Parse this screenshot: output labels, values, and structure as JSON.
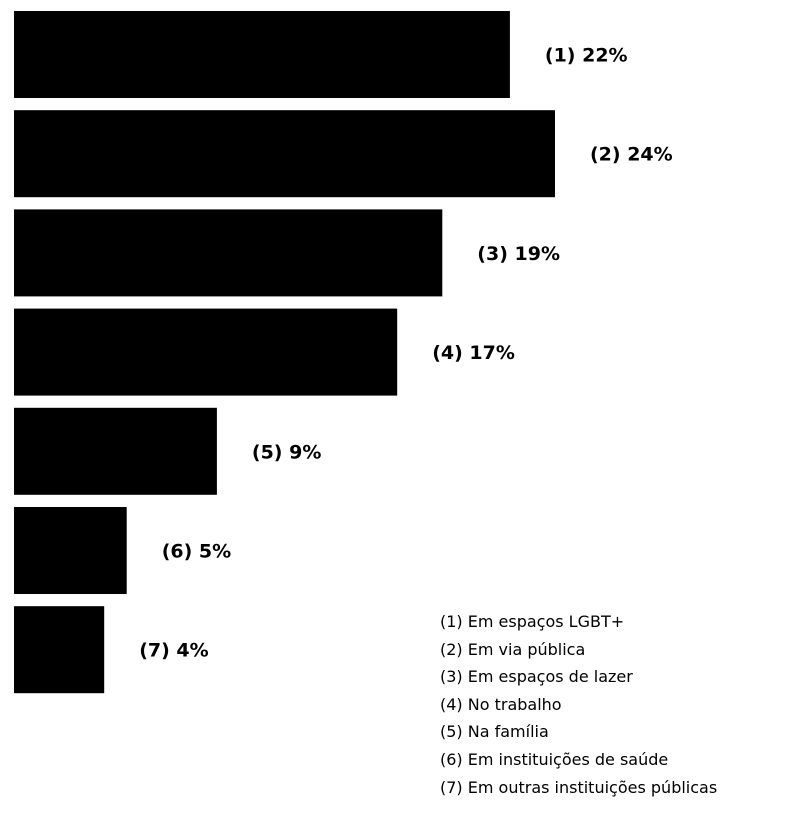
{
  "chart_data": {
    "type": "bar",
    "orientation": "horizontal",
    "categories": [
      "(1)",
      "(2)",
      "(3)",
      "(4)",
      "(5)",
      "(6)",
      "(7)"
    ],
    "values": [
      22,
      24,
      19,
      17,
      9,
      5,
      4
    ],
    "value_labels": [
      "(1) 22%",
      "(2) 24%",
      "(3) 19%",
      "(4) 17%",
      "(5) 9%",
      "(6) 5%",
      "(7) 4%"
    ],
    "legend": [
      "(1) Em espaços LGBT+",
      "(2) Em via pública",
      "(3) Em espaços de lazer",
      "(4) No trabalho",
      "(5) Na família",
      "(6) Em instituições de saúde",
      "(7) Em outras instituições públicas"
    ],
    "legend_position": "bottom-right",
    "bar_color": "#000000",
    "grid": false,
    "axes_visible": false
  }
}
